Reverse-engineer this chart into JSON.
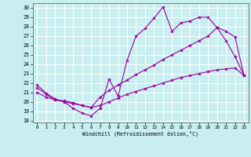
{
  "title": "",
  "xlabel": "Windchill (Refroidissement éolien,°C)",
  "background_color": "#c8eef0",
  "line_color": "#990099",
  "grid_color": "#ffffff",
  "x_ticks": [
    0,
    1,
    2,
    3,
    4,
    5,
    6,
    7,
    8,
    9,
    10,
    11,
    12,
    13,
    14,
    15,
    16,
    17,
    18,
    19,
    20,
    21,
    22,
    23
  ],
  "y_ticks": [
    18,
    19,
    20,
    21,
    22,
    23,
    24,
    25,
    26,
    27,
    28,
    29,
    30
  ],
  "ylim": [
    17.8,
    30.5
  ],
  "xlim": [
    -0.5,
    23.5
  ],
  "series1_x": [
    0,
    1,
    2,
    3,
    4,
    5,
    6,
    7,
    8,
    9,
    10,
    11,
    12,
    13,
    14,
    15,
    16,
    17,
    18,
    19,
    20,
    21,
    22,
    23
  ],
  "series1_y": [
    21.8,
    20.9,
    20.3,
    20.0,
    19.3,
    18.8,
    18.5,
    19.3,
    22.4,
    20.6,
    24.4,
    27.0,
    27.8,
    28.9,
    30.1,
    27.5,
    28.4,
    28.6,
    29.0,
    29.0,
    27.9,
    26.5,
    24.8,
    22.8
  ],
  "series2_x": [
    0,
    1,
    2,
    3,
    4,
    5,
    6,
    7,
    8,
    9,
    10,
    11,
    12,
    13,
    14,
    15,
    16,
    17,
    18,
    19,
    20,
    21,
    22,
    23
  ],
  "series2_y": [
    21.5,
    20.8,
    20.2,
    20.1,
    19.9,
    19.6,
    19.4,
    20.5,
    21.2,
    21.8,
    22.3,
    22.9,
    23.4,
    23.9,
    24.5,
    25.0,
    25.5,
    26.0,
    26.5,
    27.0,
    27.9,
    27.5,
    26.9,
    22.8
  ],
  "series3_x": [
    0,
    1,
    2,
    3,
    4,
    5,
    6,
    7,
    8,
    9,
    10,
    11,
    12,
    13,
    14,
    15,
    16,
    17,
    18,
    19,
    20,
    21,
    22,
    23
  ],
  "series3_y": [
    21.0,
    20.5,
    20.2,
    20.0,
    19.8,
    19.6,
    19.4,
    19.6,
    20.0,
    20.4,
    20.8,
    21.1,
    21.4,
    21.7,
    22.0,
    22.3,
    22.6,
    22.8,
    23.0,
    23.2,
    23.4,
    23.5,
    23.6,
    22.8
  ]
}
